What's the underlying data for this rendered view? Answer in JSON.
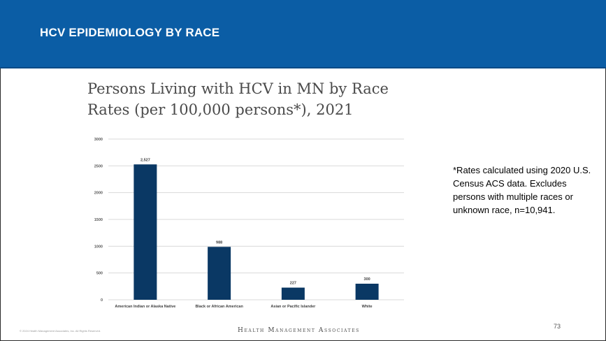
{
  "slide": {
    "title": "HCV EPIDEMIOLOGY BY RACE",
    "chart_title_line1": "Persons Living with HCV in MN by Race",
    "chart_title_line2": "Rates (per 100,000 persons*), 2021",
    "footnote": "*Rates calculated using 2020 U.S. Census ACS data. Excludes persons with multiple races or unknown race, n=10,941.",
    "copyright": "© 2024 Health Management Associates, Inc. All Rights Reserved.",
    "logo_text": "Health Management Associates",
    "page_number": "73"
  },
  "colors": {
    "header": "#0b5da5",
    "bar": "#0a3864",
    "gridline": "#d9d9d9"
  },
  "chart_data": {
    "type": "bar",
    "title": "Persons Living with HCV in MN by Race Rates (per 100,000 persons*), 2021",
    "categories": [
      "American Indian or Alaska Native",
      "Black or African American",
      "Asian or Pacific Islander",
      "White"
    ],
    "values": [
      2527,
      988,
      227,
      300
    ],
    "data_labels": [
      "2,527",
      "988",
      "227",
      "300"
    ],
    "ylim": [
      0,
      3000
    ],
    "yticks": [
      "0",
      "500",
      "1000",
      "1500",
      "2000",
      "2500",
      "3000"
    ],
    "grid": true,
    "legend": "none"
  }
}
